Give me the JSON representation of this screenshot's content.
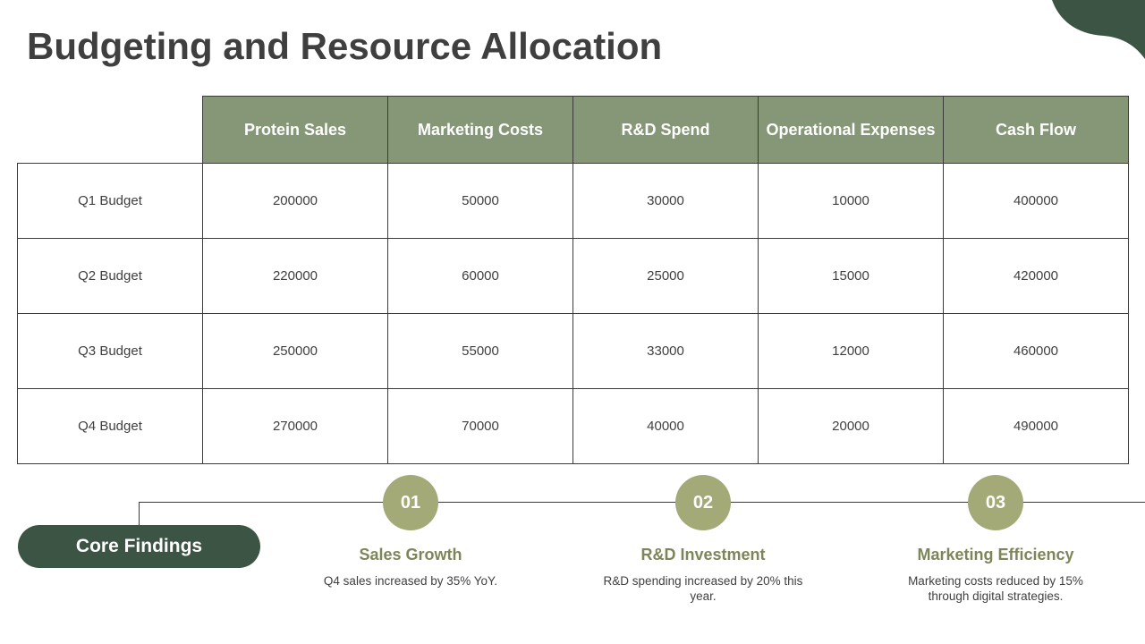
{
  "title": "Budgeting and Resource Allocation",
  "colors": {
    "header_fill": "#859777",
    "dark_green": "#3b5444",
    "circle_fill": "#a3aa78",
    "finding_title": "#7d8659"
  },
  "table": {
    "headers": [
      "Protein Sales",
      "Marketing Costs",
      "R&D Spend",
      "Operational Expenses",
      "Cash Flow"
    ],
    "rows": [
      {
        "label": "Q1 Budget",
        "cells": [
          "200000",
          "50000",
          "30000",
          "10000",
          "400000"
        ]
      },
      {
        "label": "Q2 Budget",
        "cells": [
          "220000",
          "60000",
          "25000",
          "15000",
          "420000"
        ]
      },
      {
        "label": "Q3 Budget",
        "cells": [
          "250000",
          "55000",
          "33000",
          "12000",
          "460000"
        ]
      },
      {
        "label": "Q4 Budget",
        "cells": [
          "270000",
          "70000",
          "40000",
          "20000",
          "490000"
        ]
      }
    ]
  },
  "core_findings_label": "Core Findings",
  "findings": [
    {
      "number": "01",
      "title": "Sales Growth",
      "description": "Q4 sales increased by 35% YoY."
    },
    {
      "number": "02",
      "title": "R&D Investment",
      "description": "R&D spending increased by 20% this year."
    },
    {
      "number": "03",
      "title": "Marketing Efficiency",
      "description": "Marketing costs reduced by 15% through digital strategies."
    }
  ]
}
